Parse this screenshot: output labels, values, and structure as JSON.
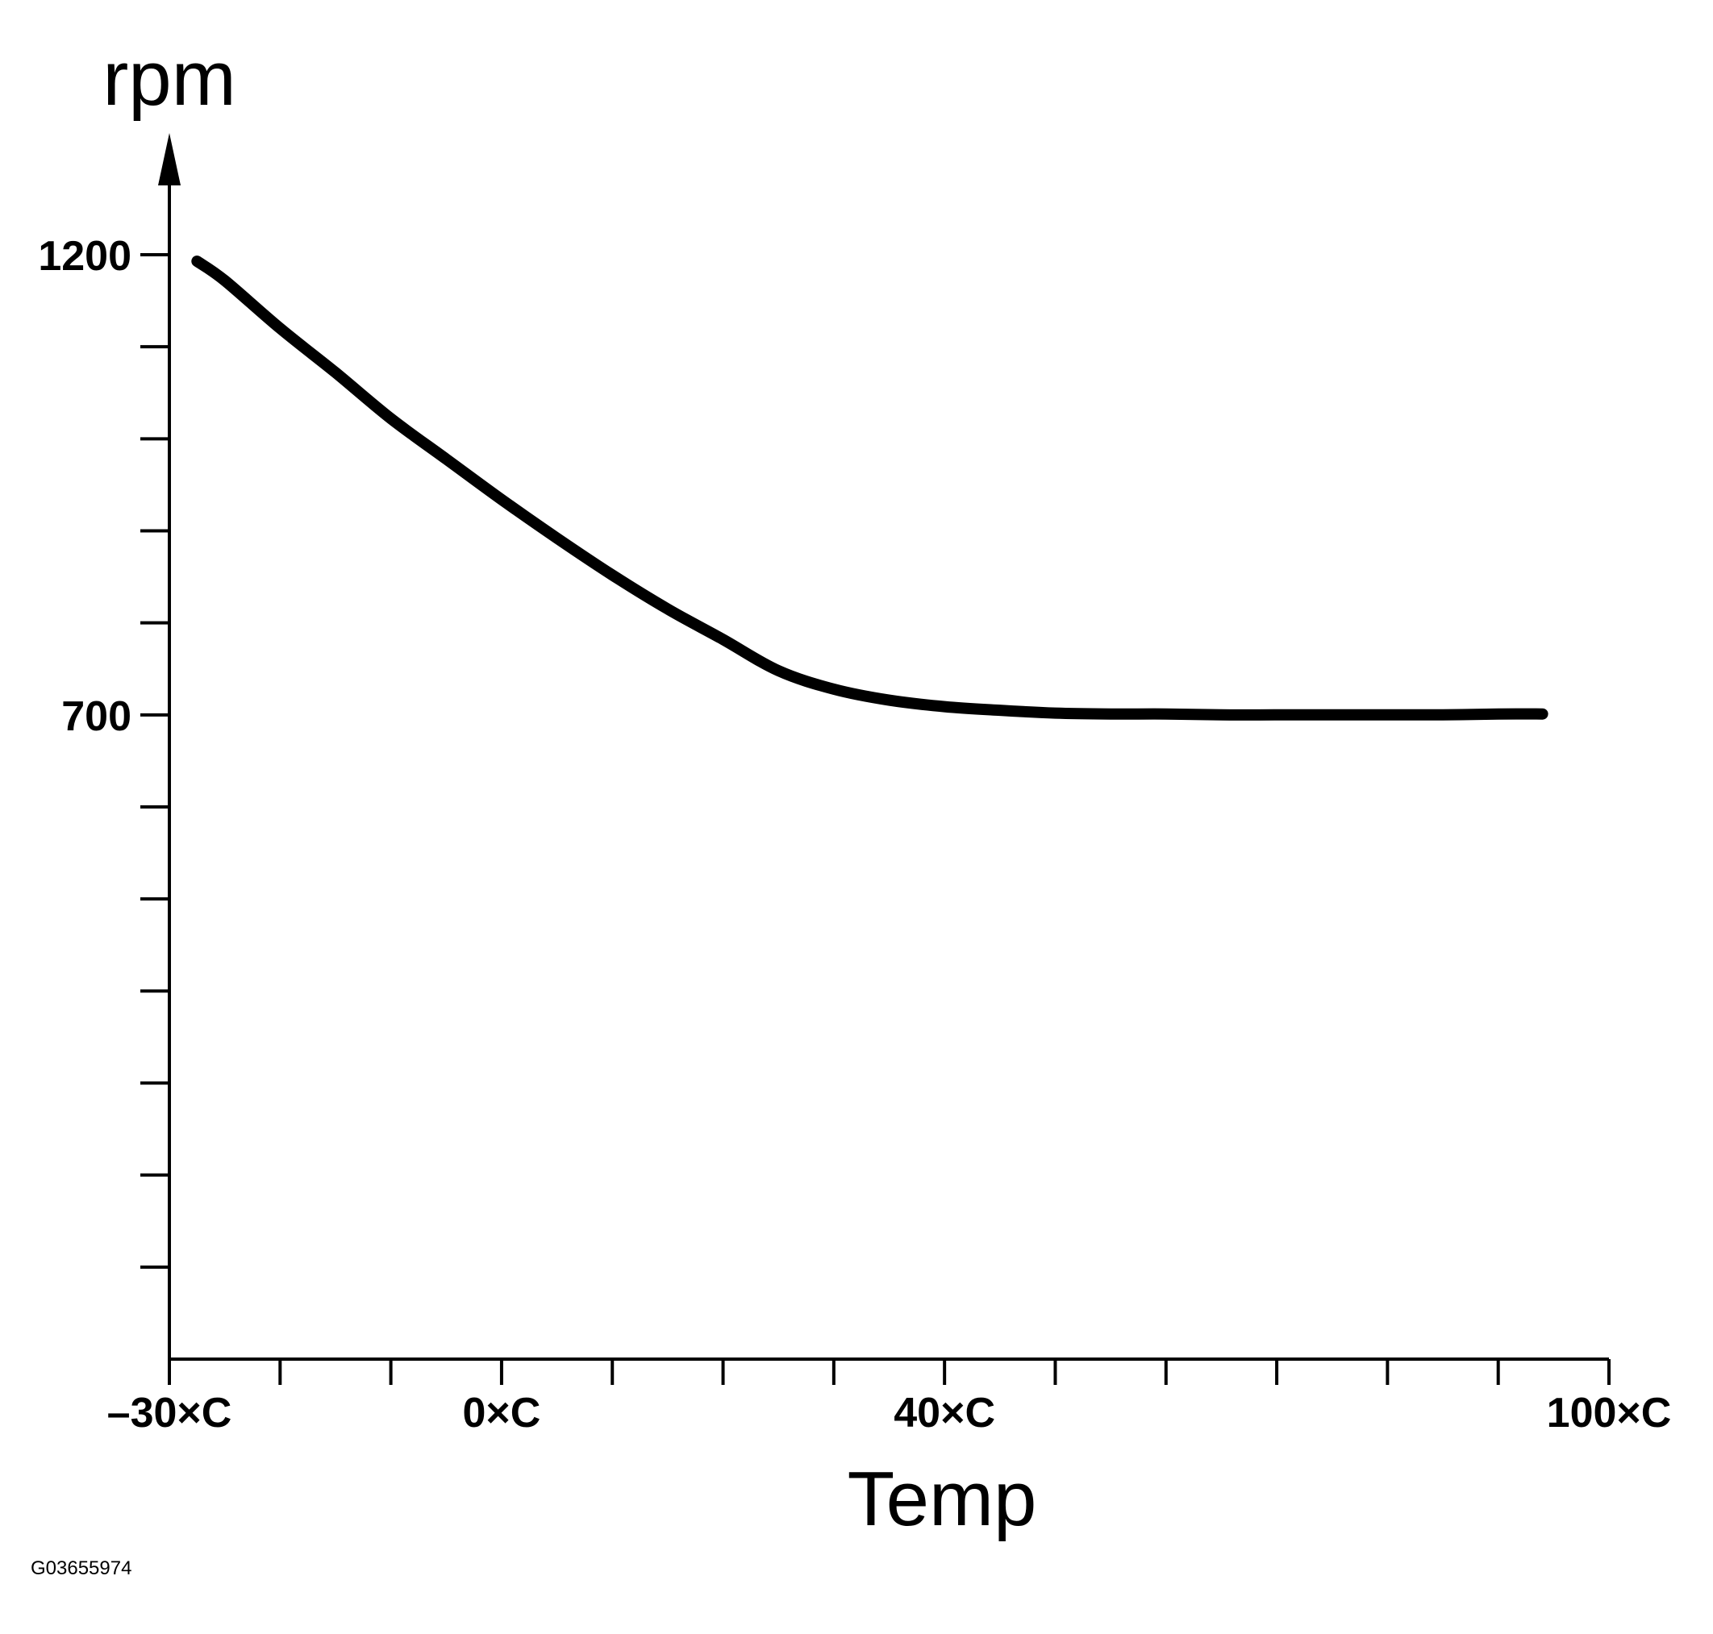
{
  "chart_data": {
    "type": "line",
    "ylabel": "rpm",
    "xlabel": "Temp",
    "xlim": [
      -30,
      100
    ],
    "ylim": [
      0,
      1200
    ],
    "x_tick_labels": [
      {
        "value": -30,
        "label": "–30×C"
      },
      {
        "value": 0,
        "label": "0×C"
      },
      {
        "value": 40,
        "label": "40×C"
      },
      {
        "value": 100,
        "label": "100×C"
      }
    ],
    "y_tick_labels": [
      {
        "value": 1200,
        "label": "1200"
      },
      {
        "value": 700,
        "label": "700"
      }
    ],
    "x_minor_ticks": [
      -20,
      -10,
      10,
      20,
      30,
      50,
      60,
      70,
      80,
      90
    ],
    "y_minor_ticks": [
      100,
      200,
      300,
      400,
      500,
      600,
      800,
      900,
      1000,
      1100
    ],
    "series": [
      {
        "x": [
          -27.5,
          -25,
          -20,
          -15,
          -10,
          -5,
          0,
          5,
          10,
          15,
          20,
          25,
          30,
          35,
          40,
          45,
          50,
          55,
          60,
          65,
          70,
          75,
          80,
          85,
          90,
          94
        ],
        "y": [
          1193,
          1172,
          1120,
          1072,
          1022,
          978,
          934,
          892,
          852,
          815,
          782,
          748,
          728,
          716,
          709,
          705,
          702,
          701,
          701,
          700,
          700,
          700,
          700,
          700,
          701,
          701
        ]
      }
    ]
  },
  "figure_code": "G03655974"
}
